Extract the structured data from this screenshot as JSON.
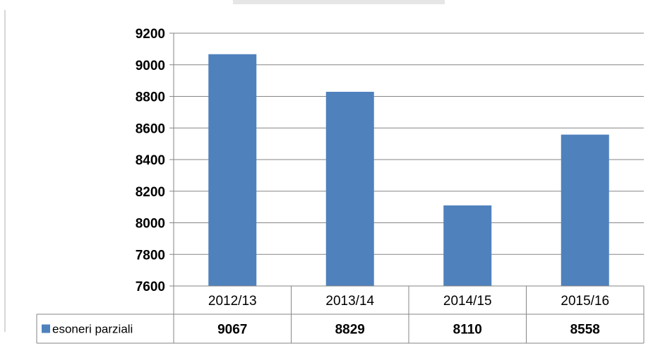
{
  "chart_data": {
    "type": "bar",
    "categories": [
      "2012/13",
      "2013/14",
      "2014/15",
      "2015/16"
    ],
    "series": [
      {
        "name": "esoneri parziali",
        "values": [
          9067,
          8829,
          8110,
          8558
        ]
      }
    ],
    "yticks": [
      "7600",
      "7800",
      "8000",
      "8200",
      "8400",
      "8600",
      "8800",
      "9000",
      "9200"
    ],
    "table_values": [
      "9067",
      "8829",
      "8110",
      "8558"
    ],
    "ylim": [
      7600,
      9200
    ],
    "y_step": 200,
    "grid": true,
    "legend": "data-table",
    "colors": {
      "bar": "#4F81BD",
      "grid": "#868686",
      "axis": "#868686"
    }
  }
}
